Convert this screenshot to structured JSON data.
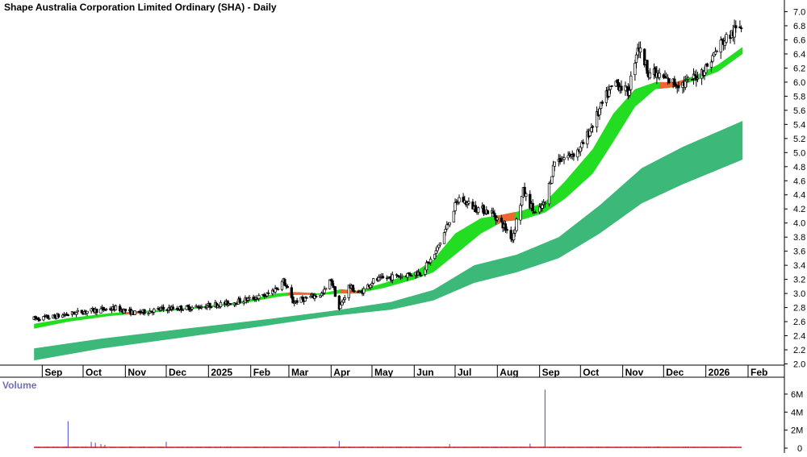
{
  "chart_data": [
    {
      "type": "candlestick",
      "title": "Shape Australia Corporation Limited Ordinary (SHA) - Daily",
      "y_ticks": [
        "7.0",
        "6.8",
        "6.6",
        "6.4",
        "6.2",
        "6.0",
        "5.8",
        "5.6",
        "5.4",
        "5.2",
        "5.0",
        "4.8",
        "4.6",
        "4.4",
        "4.2",
        "4.0",
        "3.8",
        "3.6",
        "3.4",
        "3.2",
        "3.0",
        "2.8",
        "2.6",
        "2.4",
        "2.2",
        "2.0"
      ],
      "ylim": [
        1.95,
        7.1
      ],
      "x_ticks": [
        "Sep",
        "Oct",
        "Nov",
        "Dec",
        "2025",
        "Feb",
        "Mar",
        "Apr",
        "May",
        "Jun",
        "Jul",
        "Aug",
        "Sep",
        "Oct",
        "Nov",
        "Dec",
        "2026",
        "Feb"
      ],
      "grid": false,
      "price_trend": [
        {
          "date": "2024-08-26",
          "price": 2.64
        },
        {
          "date": "2024-09-10",
          "price": 2.67
        },
        {
          "date": "2024-09-30",
          "price": 2.74
        },
        {
          "date": "2024-10-10",
          "price": 2.76
        },
        {
          "date": "2024-10-25",
          "price": 2.79
        },
        {
          "date": "2024-11-08",
          "price": 2.72
        },
        {
          "date": "2024-11-29",
          "price": 2.78
        },
        {
          "date": "2024-12-20",
          "price": 2.8
        },
        {
          "date": "2025-01-15",
          "price": 2.86
        },
        {
          "date": "2025-01-31",
          "price": 2.92
        },
        {
          "date": "2025-02-12",
          "price": 2.97
        },
        {
          "date": "2025-02-20",
          "price": 3.08
        },
        {
          "date": "2025-02-25",
          "price": 3.18
        },
        {
          "date": "2025-03-04",
          "price": 2.88
        },
        {
          "date": "2025-03-14",
          "price": 2.93
        },
        {
          "date": "2025-03-26",
          "price": 3.0
        },
        {
          "date": "2025-04-01",
          "price": 3.2
        },
        {
          "date": "2025-04-07",
          "price": 2.78
        },
        {
          "date": "2025-04-14",
          "price": 3.1
        },
        {
          "date": "2025-04-22",
          "price": 3.0
        },
        {
          "date": "2025-05-02",
          "price": 3.18
        },
        {
          "date": "2025-05-20",
          "price": 3.25
        },
        {
          "date": "2025-06-06",
          "price": 3.3
        },
        {
          "date": "2025-06-16",
          "price": 3.55
        },
        {
          "date": "2025-06-25",
          "price": 3.95
        },
        {
          "date": "2025-06-30",
          "price": 4.2
        },
        {
          "date": "2025-07-04",
          "price": 4.35
        },
        {
          "date": "2025-07-15",
          "price": 4.22
        },
        {
          "date": "2025-07-28",
          "price": 4.15
        },
        {
          "date": "2025-08-06",
          "price": 3.95
        },
        {
          "date": "2025-08-12",
          "price": 3.78
        },
        {
          "date": "2025-08-20",
          "price": 4.45
        },
        {
          "date": "2025-08-29",
          "price": 4.12
        },
        {
          "date": "2025-09-05",
          "price": 4.28
        },
        {
          "date": "2025-09-12",
          "price": 4.88
        },
        {
          "date": "2025-09-22",
          "price": 4.95
        },
        {
          "date": "2025-10-01",
          "price": 5.05
        },
        {
          "date": "2025-10-10",
          "price": 5.4
        },
        {
          "date": "2025-10-20",
          "price": 5.8
        },
        {
          "date": "2025-10-27",
          "price": 6.0
        },
        {
          "date": "2025-11-05",
          "price": 5.85
        },
        {
          "date": "2025-11-12",
          "price": 6.52
        },
        {
          "date": "2025-11-20",
          "price": 6.15
        },
        {
          "date": "2025-12-01",
          "price": 6.05
        },
        {
          "date": "2025-12-10",
          "price": 5.98
        },
        {
          "date": "2025-12-18",
          "price": 5.98
        },
        {
          "date": "2026-01-01",
          "price": 6.2
        },
        {
          "date": "2026-01-12",
          "price": 6.55
        },
        {
          "date": "2026-01-22",
          "price": 6.72
        },
        {
          "date": "2026-01-27",
          "price": 6.8
        }
      ],
      "short_term_ma_band": {
        "color": "#22dd22",
        "downtrend_color": "#ee6633",
        "upper": [
          {
            "date": "2024-08-26",
            "price": 2.57
          },
          {
            "date": "2024-09-20",
            "price": 2.65
          },
          {
            "date": "2024-10-20",
            "price": 2.72
          },
          {
            "date": "2024-11-20",
            "price": 2.76
          },
          {
            "date": "2024-12-20",
            "price": 2.8
          },
          {
            "date": "2025-01-20",
            "price": 2.87
          },
          {
            "date": "2025-02-20",
            "price": 3.0
          },
          {
            "date": "2025-03-05",
            "price": 3.02
          },
          {
            "date": "2025-03-25",
            "price": 3.0
          },
          {
            "date": "2025-04-08",
            "price": 3.06
          },
          {
            "date": "2025-04-20",
            "price": 3.04
          },
          {
            "date": "2025-05-10",
            "price": 3.15
          },
          {
            "date": "2025-06-01",
            "price": 3.3
          },
          {
            "date": "2025-06-15",
            "price": 3.48
          },
          {
            "date": "2025-07-01",
            "price": 3.85
          },
          {
            "date": "2025-07-20",
            "price": 4.07
          },
          {
            "date": "2025-08-05",
            "price": 4.12
          },
          {
            "date": "2025-08-20",
            "price": 4.18
          },
          {
            "date": "2025-09-05",
            "price": 4.3
          },
          {
            "date": "2025-09-20",
            "price": 4.6
          },
          {
            "date": "2025-10-10",
            "price": 5.05
          },
          {
            "date": "2025-10-25",
            "price": 5.55
          },
          {
            "date": "2025-11-10",
            "price": 5.9
          },
          {
            "date": "2025-11-25",
            "price": 6.0
          },
          {
            "date": "2025-12-10",
            "price": 6.0
          },
          {
            "date": "2025-12-25",
            "price": 6.1
          },
          {
            "date": "2026-01-10",
            "price": 6.25
          },
          {
            "date": "2026-01-28",
            "price": 6.5
          }
        ],
        "lower": [
          {
            "date": "2024-08-26",
            "price": 2.5
          },
          {
            "date": "2024-09-20",
            "price": 2.6
          },
          {
            "date": "2024-10-20",
            "price": 2.68
          },
          {
            "date": "2024-11-20",
            "price": 2.73
          },
          {
            "date": "2024-12-20",
            "price": 2.78
          },
          {
            "date": "2025-01-20",
            "price": 2.84
          },
          {
            "date": "2025-02-20",
            "price": 2.95
          },
          {
            "date": "2025-03-05",
            "price": 2.98
          },
          {
            "date": "2025-03-25",
            "price": 2.98
          },
          {
            "date": "2025-04-08",
            "price": 3.0
          },
          {
            "date": "2025-04-20",
            "price": 3.0
          },
          {
            "date": "2025-05-10",
            "price": 3.08
          },
          {
            "date": "2025-06-01",
            "price": 3.2
          },
          {
            "date": "2025-06-15",
            "price": 3.3
          },
          {
            "date": "2025-07-01",
            "price": 3.55
          },
          {
            "date": "2025-07-20",
            "price": 3.85
          },
          {
            "date": "2025-08-05",
            "price": 4.02
          },
          {
            "date": "2025-08-20",
            "price": 4.05
          },
          {
            "date": "2025-09-05",
            "price": 4.15
          },
          {
            "date": "2025-09-20",
            "price": 4.35
          },
          {
            "date": "2025-10-10",
            "price": 4.7
          },
          {
            "date": "2025-10-25",
            "price": 5.15
          },
          {
            "date": "2025-11-10",
            "price": 5.65
          },
          {
            "date": "2025-11-25",
            "price": 5.9
          },
          {
            "date": "2025-12-10",
            "price": 5.93
          },
          {
            "date": "2025-12-25",
            "price": 6.03
          },
          {
            "date": "2026-01-10",
            "price": 6.15
          },
          {
            "date": "2026-01-28",
            "price": 6.4
          }
        ],
        "downtrend_segments": [
          [
            "2024-11-01",
            "2024-11-15"
          ],
          [
            "2025-02-28",
            "2025-03-20"
          ],
          [
            "2025-04-08",
            "2025-04-22"
          ],
          [
            "2025-08-01",
            "2025-08-14"
          ],
          [
            "2025-11-28",
            "2025-12-16"
          ]
        ]
      },
      "long_term_ma_band": {
        "color": "#3cb878",
        "upper": [
          {
            "date": "2024-08-26",
            "price": 2.22
          },
          {
            "date": "2024-10-15",
            "price": 2.36
          },
          {
            "date": "2024-12-15",
            "price": 2.5
          },
          {
            "date": "2025-02-15",
            "price": 2.64
          },
          {
            "date": "2025-04-01",
            "price": 2.75
          },
          {
            "date": "2025-05-15",
            "price": 2.88
          },
          {
            "date": "2025-06-15",
            "price": 3.05
          },
          {
            "date": "2025-07-15",
            "price": 3.4
          },
          {
            "date": "2025-08-15",
            "price": 3.55
          },
          {
            "date": "2025-09-15",
            "price": 3.8
          },
          {
            "date": "2025-10-15",
            "price": 4.25
          },
          {
            "date": "2025-11-15",
            "price": 4.78
          },
          {
            "date": "2025-12-15",
            "price": 5.08
          },
          {
            "date": "2026-01-28",
            "price": 5.45
          }
        ],
        "lower": [
          {
            "date": "2024-08-26",
            "price": 2.05
          },
          {
            "date": "2024-10-15",
            "price": 2.22
          },
          {
            "date": "2024-12-15",
            "price": 2.38
          },
          {
            "date": "2025-02-15",
            "price": 2.55
          },
          {
            "date": "2025-04-01",
            "price": 2.68
          },
          {
            "date": "2025-05-15",
            "price": 2.77
          },
          {
            "date": "2025-06-15",
            "price": 2.9
          },
          {
            "date": "2025-07-15",
            "price": 3.15
          },
          {
            "date": "2025-08-15",
            "price": 3.3
          },
          {
            "date": "2025-09-15",
            "price": 3.5
          },
          {
            "date": "2025-10-15",
            "price": 3.85
          },
          {
            "date": "2025-11-15",
            "price": 4.28
          },
          {
            "date": "2025-12-15",
            "price": 4.55
          },
          {
            "date": "2026-01-28",
            "price": 4.9
          }
        ]
      }
    },
    {
      "type": "bar",
      "title": "Volume",
      "y_ticks": [
        "6M",
        "4M",
        "2M",
        "0"
      ],
      "ylim": [
        0,
        6800000
      ],
      "baseline_color": "#cc2222",
      "bar_color": "#6666cc",
      "values": [
        {
          "date": "2024-09-20",
          "volume": 3000000
        },
        {
          "date": "2024-10-07",
          "volume": 700000
        },
        {
          "date": "2024-10-10",
          "volume": 600000
        },
        {
          "date": "2024-10-14",
          "volume": 450000
        },
        {
          "date": "2024-10-17",
          "volume": 380000
        },
        {
          "date": "2024-12-01",
          "volume": 700000
        },
        {
          "date": "2025-04-07",
          "volume": 800000
        },
        {
          "date": "2025-06-27",
          "volume": 450000
        },
        {
          "date": "2025-08-25",
          "volume": 500000
        },
        {
          "date": "2025-09-05",
          "volume": 6500000
        }
      ]
    }
  ]
}
